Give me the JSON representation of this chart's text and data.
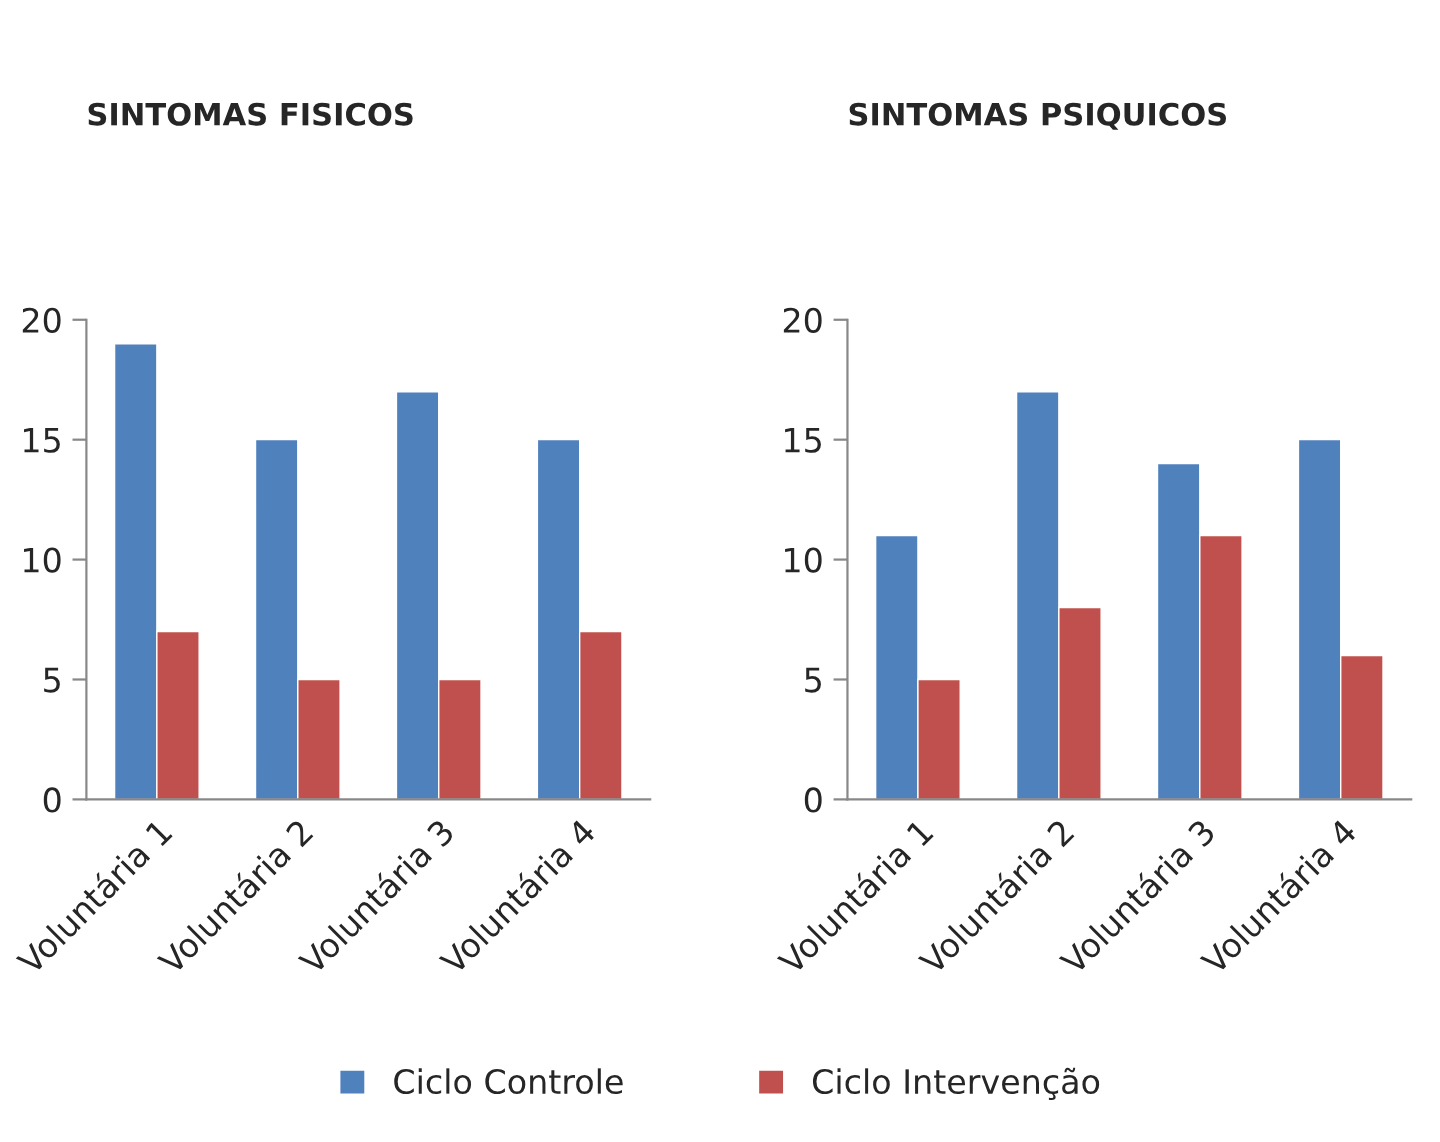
{
  "chart_data": [
    {
      "type": "bar",
      "title": "SINTOMAS FISICOS",
      "categories": [
        "Voluntária 1",
        "Voluntária 2",
        "Voluntária 3",
        "Voluntária 4"
      ],
      "series": [
        {
          "name": "Ciclo Controle",
          "color": "#4f81bd",
          "values": [
            19,
            15,
            17,
            15
          ]
        },
        {
          "name": "Ciclo Intervenção",
          "color": "#c0504d",
          "values": [
            7,
            5,
            5,
            7
          ]
        }
      ],
      "ylim": [
        0,
        20
      ],
      "yticks": [
        0,
        5,
        10,
        15,
        20
      ],
      "grid": false,
      "legend": "bottom"
    },
    {
      "type": "bar",
      "title": "SINTOMAS PSIQUICOS",
      "categories": [
        "Voluntária 1",
        "Voluntária 2",
        "Voluntária 3",
        "Voluntária 4"
      ],
      "series": [
        {
          "color": "#4f81bd",
          "values": [
            11,
            17,
            14,
            15
          ]
        },
        {
          "color": "#c0504d",
          "values": [
            5,
            8,
            11,
            6
          ]
        }
      ],
      "ylim": [
        0,
        20
      ],
      "yticks": [
        0,
        5,
        10,
        15,
        20
      ],
      "grid": false
    }
  ]
}
